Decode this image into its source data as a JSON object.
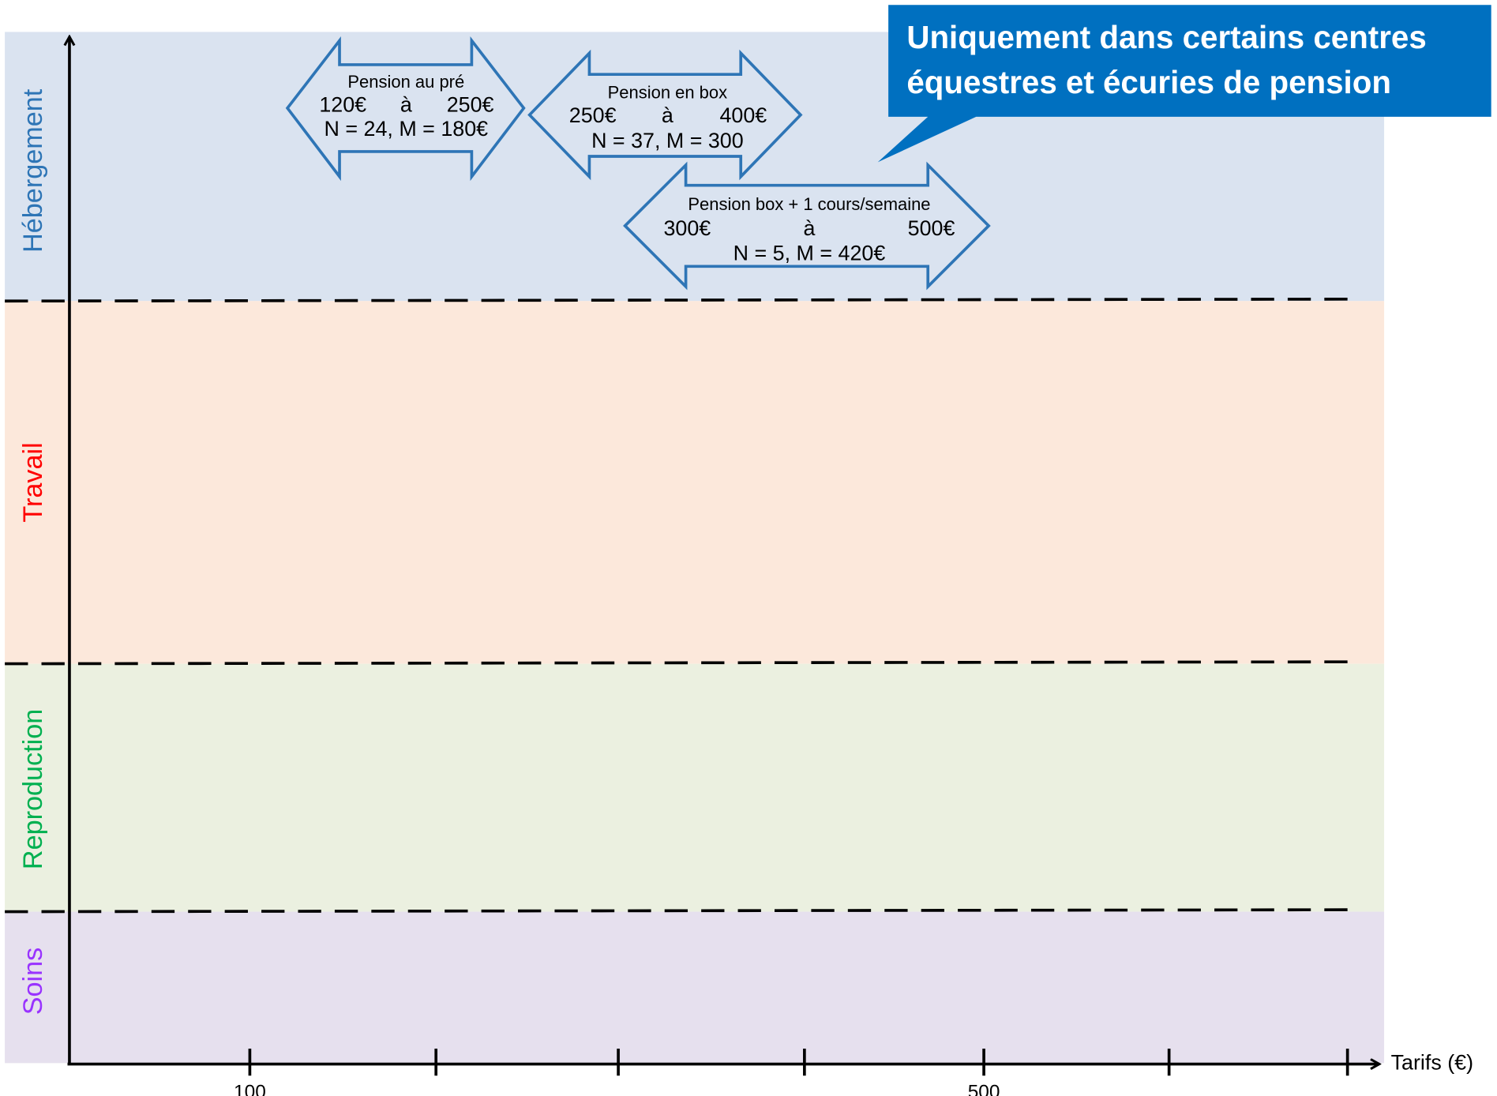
{
  "bands": [
    {
      "label": "Hébergement"
    },
    {
      "label": "Travail"
    },
    {
      "label": "Reproduction"
    },
    {
      "label": "Soins"
    }
  ],
  "arrows": [
    {
      "title": "Pension au pré",
      "from": "120€",
      "connector": "à",
      "to": "250€",
      "stats": "N = 24, M = 180€"
    },
    {
      "title": "Pension en box",
      "from": "250€",
      "connector": "à",
      "to": "400€",
      "stats": "N = 37, M = 300"
    },
    {
      "title": "Pension box + 1 cours/semaine",
      "from": "300€",
      "connector": "à",
      "to": "500€",
      "stats": "N = 5, M = 420€"
    }
  ],
  "callout": {
    "lines": [
      "Uniquement dans certains centres",
      "équestres et écuries de pension"
    ]
  },
  "x_axis": {
    "label": "Tarifs (€)",
    "tick_labels": [
      "100",
      "500"
    ]
  }
}
